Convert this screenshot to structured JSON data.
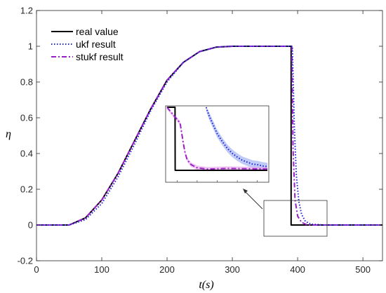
{
  "chart_data": {
    "type": "line",
    "title": "",
    "xlabel": "t(s)",
    "ylabel": "η",
    "xlim": [
      0,
      530
    ],
    "ylim": [
      -0.2,
      1.2
    ],
    "x_ticks": [
      0,
      100,
      200,
      300,
      400,
      500
    ],
    "y_ticks": [
      -0.2,
      0,
      0.2,
      0.4,
      0.6,
      0.8,
      1,
      1.2
    ],
    "x_tick_labels": [
      "0",
      "100",
      "200",
      "300",
      "400",
      "500"
    ],
    "y_tick_labels": [
      "-0.2",
      "0",
      "0.2",
      "0.4",
      "0.6",
      "0.8",
      "1",
      "1.2"
    ],
    "grid": false,
    "legend_position": "top-left",
    "colors": {
      "real": "#000000",
      "ukf": "#1f1fd6",
      "stukf": "#9b1fc7",
      "ukf_band": "#8b9ff0",
      "stukf_band": "#e59bea"
    },
    "series": [
      {
        "name": "real value",
        "style": "solid",
        "color": "#000000",
        "x": [
          0,
          50,
          75,
          100,
          125,
          150,
          175,
          200,
          225,
          250,
          275,
          300,
          325,
          350,
          375,
          390,
          390.01,
          530
        ],
        "y": [
          0,
          0,
          0.04,
          0.14,
          0.29,
          0.47,
          0.65,
          0.81,
          0.91,
          0.97,
          0.995,
          1.0,
          1.0,
          1.0,
          1.0,
          1.0,
          0,
          0
        ]
      },
      {
        "name": "ukf result",
        "style": "dotted",
        "color": "#1f1fd6",
        "x": [
          0,
          50,
          75,
          100,
          125,
          150,
          175,
          200,
          225,
          250,
          275,
          300,
          325,
          350,
          375,
          392,
          395,
          398,
          402,
          406,
          412,
          420,
          440,
          530
        ],
        "y": [
          0,
          0,
          0.03,
          0.12,
          0.27,
          0.45,
          0.64,
          0.8,
          0.91,
          0.97,
          0.995,
          1.0,
          1.0,
          1.0,
          1.0,
          1.0,
          0.55,
          0.28,
          0.13,
          0.06,
          0.02,
          0.005,
          0,
          0
        ]
      },
      {
        "name": "stukf result",
        "style": "dashdot",
        "color": "#9b1fc7",
        "x": [
          0,
          50,
          75,
          100,
          125,
          150,
          175,
          200,
          225,
          250,
          275,
          300,
          325,
          350,
          375,
          391,
          393,
          396,
          400,
          406,
          415,
          530
        ],
        "y": [
          0,
          0,
          0.04,
          0.14,
          0.29,
          0.47,
          0.65,
          0.81,
          0.91,
          0.97,
          0.995,
          1.0,
          1.0,
          1.0,
          1.0,
          1.0,
          0.42,
          0.14,
          0.05,
          0.015,
          0,
          0
        ]
      }
    ],
    "inset": {
      "source_xlim": [
        350,
        450
      ],
      "source_ylim": [
        -0.06,
        0.14
      ],
      "series": [
        {
          "name": "real value",
          "x": [
            0,
            0.08,
            0.081,
            1
          ],
          "y": [
            1,
            1,
            0,
            0
          ]
        },
        {
          "name": "stukf result",
          "x": [
            0,
            0.13,
            0.16,
            0.18,
            0.2,
            0.24,
            0.3,
            0.4,
            0.6,
            1
          ],
          "y": [
            1,
            0.75,
            0.45,
            0.28,
            0.17,
            0.09,
            0.04,
            0.02,
            0.03,
            0.02
          ]
        },
        {
          "name": "ukf result",
          "x": [
            0.39,
            0.42,
            0.46,
            0.5,
            0.55,
            0.6,
            0.65,
            0.7,
            0.75,
            0.8,
            0.85,
            0.9,
            0.95,
            1
          ],
          "y": [
            1,
            0.86,
            0.72,
            0.58,
            0.46,
            0.35,
            0.27,
            0.21,
            0.16,
            0.13,
            0.1,
            0.09,
            0.07,
            0.06
          ]
        }
      ]
    }
  }
}
